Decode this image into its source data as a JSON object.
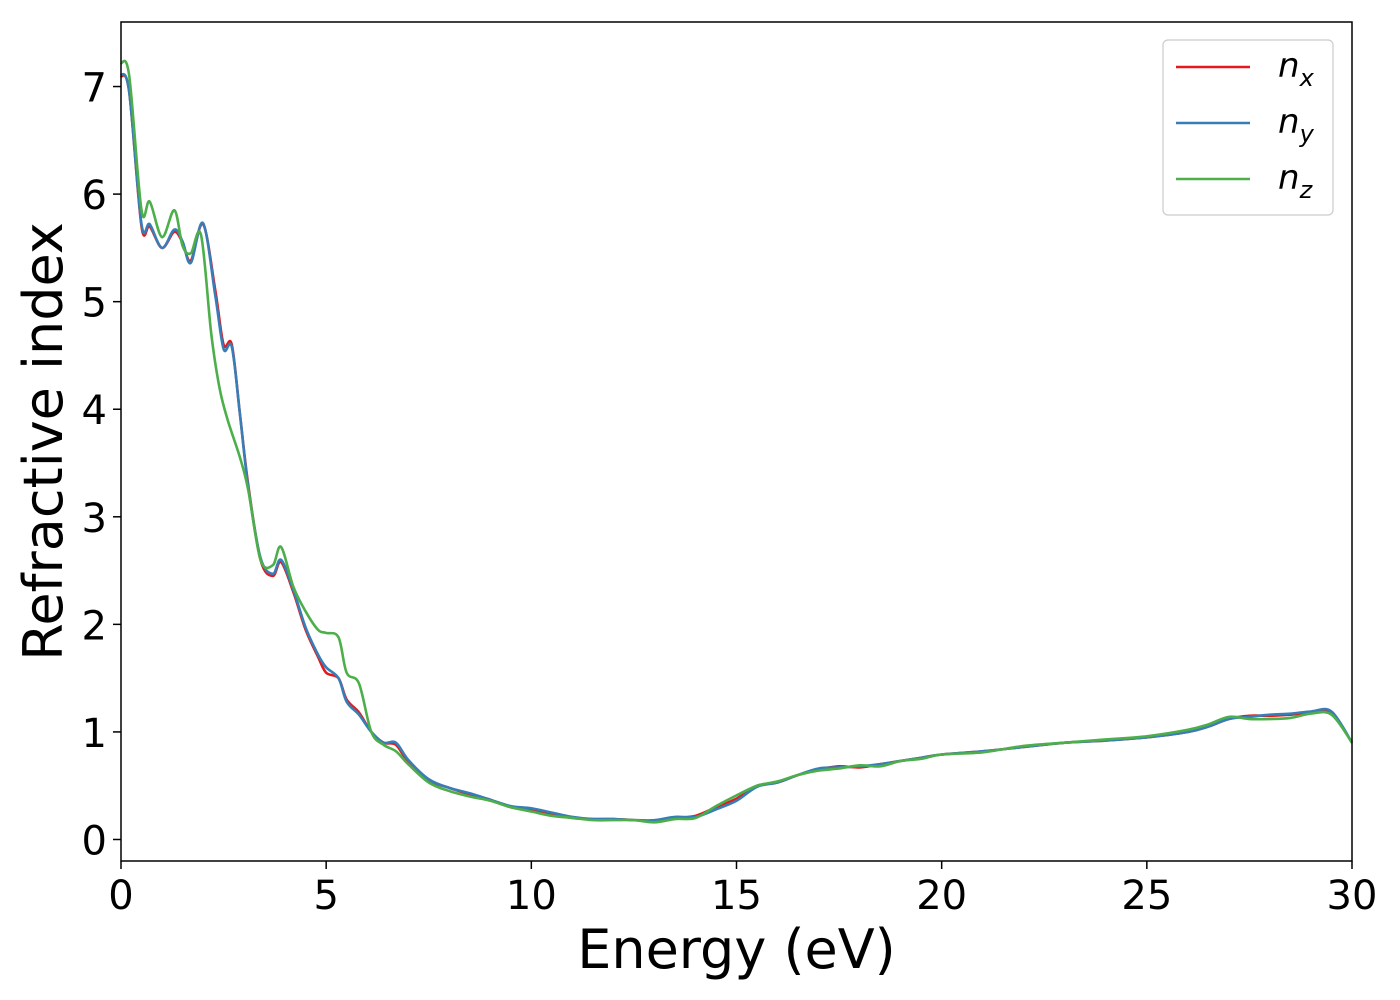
{
  "chart_data": {
    "type": "line",
    "xlabel": "Energy (eV)",
    "ylabel": "Refractive index",
    "xlim": [
      0,
      30
    ],
    "ylim": [
      -0.2,
      7.6
    ],
    "xticks": [
      "0",
      "5",
      "10",
      "15",
      "20",
      "25",
      "30"
    ],
    "yticks": [
      "0",
      "1",
      "2",
      "3",
      "4",
      "5",
      "6",
      "7"
    ],
    "grid": false,
    "legend_position": "top-right",
    "series": [
      {
        "name": "n_x",
        "label_base": "n",
        "label_sub": "x",
        "color": "#e41a1c",
        "x": [
          0,
          0.2,
          0.5,
          0.7,
          1.0,
          1.3,
          1.5,
          1.7,
          2.0,
          2.3,
          2.5,
          2.7,
          2.9,
          3.1,
          3.4,
          3.7,
          3.9,
          4.2,
          4.5,
          4.8,
          5.0,
          5.3,
          5.5,
          5.8,
          6.1,
          6.4,
          6.7,
          7.0,
          7.5,
          8.0,
          8.5,
          9.0,
          9.5,
          10.0,
          10.5,
          11.0,
          11.5,
          12.0,
          12.5,
          13.0,
          13.5,
          14.0,
          14.5,
          15.0,
          15.5,
          16.0,
          16.5,
          17.0,
          17.5,
          18.0,
          18.5,
          19.0,
          19.5,
          20.0,
          21.0,
          22.0,
          23.0,
          24.0,
          25.0,
          26.0,
          26.5,
          27.0,
          27.5,
          28.0,
          28.5,
          29.0,
          29.5,
          30.0
        ],
        "y": [
          7.1,
          6.95,
          5.7,
          5.7,
          5.5,
          5.65,
          5.55,
          5.38,
          5.72,
          5.1,
          4.6,
          4.6,
          3.95,
          3.3,
          2.6,
          2.45,
          2.58,
          2.3,
          1.95,
          1.7,
          1.55,
          1.5,
          1.3,
          1.18,
          1.0,
          0.9,
          0.88,
          0.72,
          0.55,
          0.48,
          0.42,
          0.37,
          0.3,
          0.28,
          0.24,
          0.2,
          0.19,
          0.19,
          0.18,
          0.17,
          0.2,
          0.22,
          0.3,
          0.38,
          0.5,
          0.53,
          0.6,
          0.65,
          0.68,
          0.67,
          0.7,
          0.73,
          0.76,
          0.79,
          0.82,
          0.86,
          0.9,
          0.92,
          0.95,
          1.0,
          1.05,
          1.12,
          1.15,
          1.15,
          1.16,
          1.18,
          1.18,
          0.9
        ]
      },
      {
        "name": "n_y",
        "label_base": "n",
        "label_sub": "y",
        "color": "#377eb8",
        "x": [
          0,
          0.2,
          0.5,
          0.7,
          1.0,
          1.3,
          1.5,
          1.7,
          2.0,
          2.3,
          2.5,
          2.7,
          2.9,
          3.1,
          3.4,
          3.7,
          3.9,
          4.2,
          4.5,
          4.8,
          5.0,
          5.3,
          5.5,
          5.8,
          6.1,
          6.4,
          6.7,
          7.0,
          7.5,
          8.0,
          8.5,
          9.0,
          9.5,
          10.0,
          10.5,
          11.0,
          11.5,
          12.0,
          12.5,
          13.0,
          13.5,
          14.0,
          14.5,
          15.0,
          15.5,
          16.0,
          16.5,
          17.0,
          17.5,
          18.0,
          18.5,
          19.0,
          19.5,
          20.0,
          21.0,
          22.0,
          23.0,
          24.0,
          25.0,
          26.0,
          26.5,
          27.0,
          27.5,
          28.0,
          28.5,
          29.0,
          29.5,
          30.0
        ],
        "y": [
          7.12,
          6.95,
          5.72,
          5.72,
          5.5,
          5.67,
          5.56,
          5.36,
          5.73,
          5.05,
          4.56,
          4.58,
          3.95,
          3.28,
          2.62,
          2.47,
          2.6,
          2.32,
          1.97,
          1.72,
          1.6,
          1.5,
          1.28,
          1.16,
          1.0,
          0.9,
          0.9,
          0.74,
          0.56,
          0.48,
          0.43,
          0.37,
          0.31,
          0.29,
          0.25,
          0.21,
          0.19,
          0.19,
          0.18,
          0.18,
          0.21,
          0.21,
          0.28,
          0.36,
          0.49,
          0.53,
          0.6,
          0.66,
          0.67,
          0.68,
          0.7,
          0.73,
          0.76,
          0.79,
          0.82,
          0.86,
          0.9,
          0.92,
          0.95,
          1.0,
          1.05,
          1.12,
          1.14,
          1.16,
          1.17,
          1.19,
          1.19,
          0.9
        ]
      },
      {
        "name": "n_z",
        "label_base": "n",
        "label_sub": "z",
        "color": "#4daf4a",
        "x": [
          0,
          0.2,
          0.5,
          0.7,
          1.0,
          1.3,
          1.5,
          1.7,
          1.95,
          2.2,
          2.4,
          2.6,
          2.9,
          3.1,
          3.4,
          3.7,
          3.9,
          4.2,
          4.5,
          4.8,
          5.0,
          5.3,
          5.5,
          5.8,
          6.1,
          6.4,
          6.7,
          7.0,
          7.5,
          8.0,
          8.5,
          9.0,
          9.5,
          10.0,
          10.5,
          11.0,
          11.5,
          12.0,
          12.5,
          13.0,
          13.5,
          14.0,
          14.5,
          15.0,
          15.5,
          16.0,
          16.5,
          17.0,
          17.5,
          18.0,
          18.5,
          19.0,
          19.5,
          20.0,
          21.0,
          22.0,
          23.0,
          24.0,
          25.0,
          26.0,
          26.5,
          27.0,
          27.5,
          28.0,
          28.5,
          29.0,
          29.5,
          30.0
        ],
        "y": [
          7.22,
          7.1,
          5.85,
          5.93,
          5.6,
          5.85,
          5.52,
          5.45,
          5.62,
          4.7,
          4.2,
          3.9,
          3.55,
          3.25,
          2.6,
          2.55,
          2.72,
          2.35,
          2.12,
          1.95,
          1.92,
          1.88,
          1.55,
          1.45,
          1.0,
          0.88,
          0.82,
          0.7,
          0.53,
          0.45,
          0.4,
          0.36,
          0.3,
          0.26,
          0.22,
          0.2,
          0.18,
          0.18,
          0.18,
          0.16,
          0.19,
          0.2,
          0.31,
          0.41,
          0.5,
          0.54,
          0.6,
          0.64,
          0.66,
          0.69,
          0.68,
          0.73,
          0.75,
          0.79,
          0.81,
          0.87,
          0.9,
          0.93,
          0.96,
          1.02,
          1.07,
          1.14,
          1.12,
          1.12,
          1.13,
          1.17,
          1.16,
          0.9
        ]
      }
    ]
  }
}
